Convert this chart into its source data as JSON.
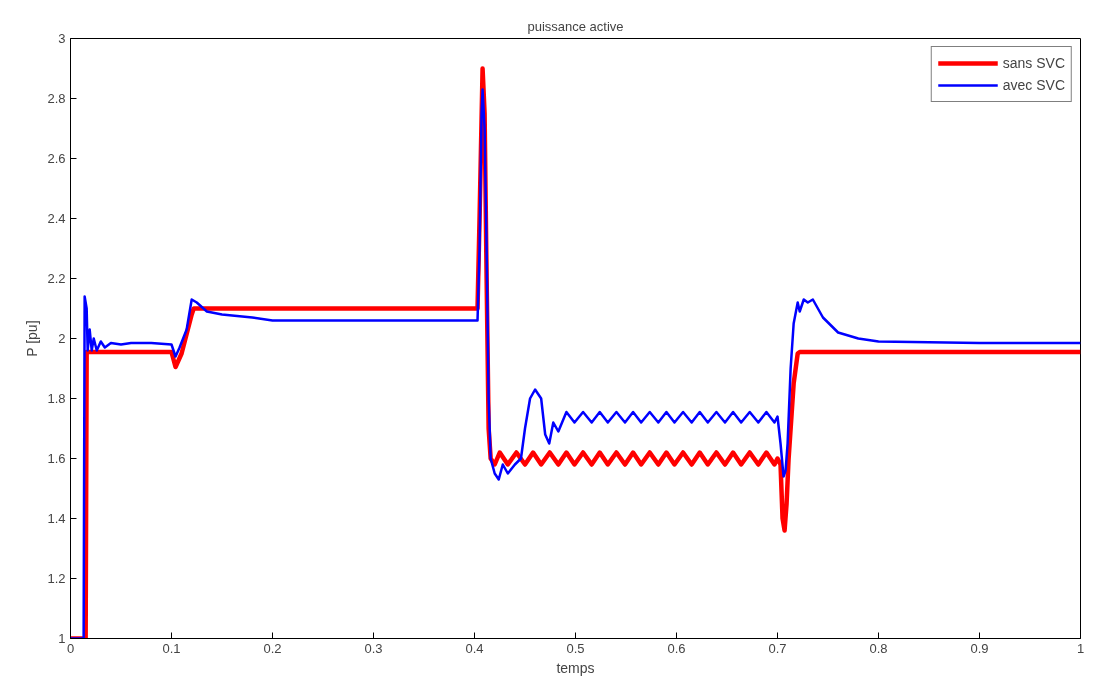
{
  "chart_data": {
    "type": "line",
    "title": "puissance active",
    "xlabel": "temps",
    "ylabel": "P [pu]",
    "xlim": [
      0,
      1
    ],
    "ylim": [
      1,
      3
    ],
    "xticks": [
      0,
      0.1,
      0.2,
      0.3,
      0.4,
      0.5,
      0.6,
      0.7,
      0.8,
      0.9,
      1
    ],
    "yticks": [
      1,
      1.2,
      1.4,
      1.6,
      1.8,
      2,
      2.2,
      2.4,
      2.6,
      2.8,
      3
    ],
    "grid": false,
    "legend": "top right",
    "line_style": "solid",
    "marker": "none",
    "series": [
      {
        "name": "sans SVC",
        "color": "#ff0000",
        "x": [
          0,
          0.015,
          0.016,
          0.1,
          0.104,
          0.11,
          0.12,
          0.122,
          0.4,
          0.403,
          0.405,
          0.408,
          0.41,
          0.412,
          0.414,
          0.416,
          0.42,
          0.425,
          0.433,
          0.4415,
          0.45,
          0.458,
          0.466,
          0.4745,
          0.483,
          0.491,
          0.499,
          0.5075,
          0.516,
          0.524,
          0.532,
          0.5405,
          0.549,
          0.557,
          0.565,
          0.5735,
          0.582,
          0.59,
          0.598,
          0.6065,
          0.615,
          0.623,
          0.631,
          0.6395,
          0.648,
          0.656,
          0.664,
          0.6725,
          0.681,
          0.689,
          0.697,
          0.7,
          0.703,
          0.705,
          0.707,
          0.709,
          0.711,
          0.714,
          0.716,
          0.72,
          0.722,
          1
        ],
        "values": [
          1,
          1,
          1.955,
          1.955,
          1.905,
          1.95,
          2.08,
          2.1,
          2.1,
          2.1,
          2.4,
          2.9,
          2.75,
          2.2,
          1.7,
          1.6,
          1.58,
          1.62,
          1.58,
          1.62,
          1.58,
          1.62,
          1.58,
          1.62,
          1.58,
          1.62,
          1.58,
          1.62,
          1.58,
          1.62,
          1.58,
          1.62,
          1.58,
          1.62,
          1.58,
          1.62,
          1.58,
          1.62,
          1.58,
          1.62,
          1.58,
          1.62,
          1.58,
          1.62,
          1.58,
          1.62,
          1.58,
          1.62,
          1.58,
          1.62,
          1.58,
          1.6,
          1.58,
          1.4,
          1.36,
          1.45,
          1.6,
          1.75,
          1.85,
          1.95,
          1.955,
          1.955
        ]
      },
      {
        "name": "avec SVC",
        "color": "#0000ff",
        "x": [
          0,
          0.013,
          0.014,
          0.016,
          0.017,
          0.019,
          0.021,
          0.023,
          0.026,
          0.03,
          0.034,
          0.04,
          0.05,
          0.06,
          0.08,
          0.1,
          0.104,
          0.108,
          0.115,
          0.12,
          0.125,
          0.135,
          0.15,
          0.18,
          0.2,
          0.4,
          0.403,
          0.405,
          0.407,
          0.408,
          0.41,
          0.412,
          0.414,
          0.416,
          0.42,
          0.424,
          0.428,
          0.433,
          0.44,
          0.446,
          0.45,
          0.455,
          0.46,
          0.466,
          0.47,
          0.474,
          0.478,
          0.483,
          0.491,
          0.499,
          0.5075,
          0.516,
          0.524,
          0.532,
          0.5405,
          0.549,
          0.557,
          0.565,
          0.5735,
          0.582,
          0.59,
          0.598,
          0.6065,
          0.615,
          0.623,
          0.631,
          0.6395,
          0.648,
          0.656,
          0.664,
          0.6725,
          0.681,
          0.689,
          0.697,
          0.7,
          0.703,
          0.706,
          0.708,
          0.71,
          0.713,
          0.716,
          0.72,
          0.722,
          0.726,
          0.73,
          0.735,
          0.745,
          0.76,
          0.78,
          0.8,
          0.9,
          1
        ],
        "values": [
          1,
          1,
          2.14,
          2.1,
          1.96,
          2.03,
          1.96,
          2.0,
          1.96,
          1.99,
          1.97,
          1.985,
          1.98,
          1.985,
          1.985,
          1.98,
          1.94,
          1.97,
          2.03,
          2.13,
          2.12,
          2.09,
          2.08,
          2.07,
          2.06,
          2.06,
          2.06,
          2.3,
          2.75,
          2.83,
          2.7,
          2.3,
          1.8,
          1.6,
          1.55,
          1.53,
          1.58,
          1.55,
          1.58,
          1.6,
          1.7,
          1.8,
          1.83,
          1.8,
          1.68,
          1.65,
          1.72,
          1.69,
          1.755,
          1.72,
          1.755,
          1.72,
          1.755,
          1.72,
          1.755,
          1.72,
          1.755,
          1.72,
          1.755,
          1.72,
          1.755,
          1.72,
          1.755,
          1.72,
          1.755,
          1.72,
          1.755,
          1.72,
          1.755,
          1.72,
          1.755,
          1.72,
          1.755,
          1.72,
          1.74,
          1.65,
          1.54,
          1.56,
          1.65,
          1.9,
          2.05,
          2.12,
          2.09,
          2.13,
          2.12,
          2.13,
          2.07,
          2.02,
          2.0,
          1.99,
          1.985,
          1.985
        ]
      }
    ]
  }
}
